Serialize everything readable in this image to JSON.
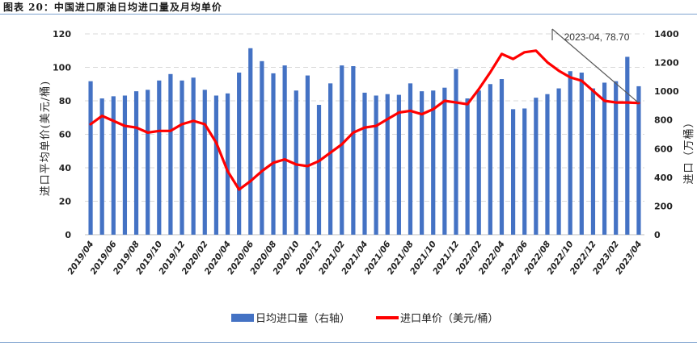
{
  "figure_title": "图表 20：中国进口原油日均进口量及月均单价",
  "chart_data": {
    "type": "bar+line",
    "title": "图表 20：中国进口原油日均进口量及月均单价",
    "left_axis": {
      "label": "进口平均单价(美元/桶)",
      "ticks": [
        "0",
        "20",
        "40",
        "60",
        "80",
        "100",
        "120"
      ],
      "range": [
        0,
        120
      ]
    },
    "right_axis": {
      "label": "进口（万桶）",
      "ticks": [
        "0",
        "200",
        "400",
        "600",
        "800",
        "1000",
        "1200",
        "1400"
      ],
      "range": [
        0,
        1400
      ]
    },
    "x_tick_labels": [
      "2019/04",
      "2019/06",
      "2019/08",
      "2019/10",
      "2019/12",
      "2020/02",
      "2020/04",
      "2020/06",
      "2020/08",
      "2020/10",
      "2020/12",
      "2021/02",
      "2021/04",
      "2021/06",
      "2021/08",
      "2021/10",
      "2021/12",
      "2022/02",
      "2022/04",
      "2022/06",
      "2022/08",
      "2022/10",
      "2022/12",
      "2023/02",
      "2023/04"
    ],
    "categories": [
      "2019/04",
      "2019/05",
      "2019/06",
      "2019/07",
      "2019/08",
      "2019/09",
      "2019/10",
      "2019/11",
      "2019/12",
      "2020/01",
      "2020/02",
      "2020/03",
      "2020/04",
      "2020/05",
      "2020/06",
      "2020/07",
      "2020/08",
      "2020/09",
      "2020/10",
      "2020/11",
      "2020/12",
      "2021/01",
      "2021/02",
      "2021/03",
      "2021/04",
      "2021/05",
      "2021/06",
      "2021/07",
      "2021/08",
      "2021/09",
      "2021/10",
      "2021/11",
      "2021/12",
      "2022/01",
      "2022/02",
      "2022/03",
      "2022/04",
      "2022/05",
      "2022/06",
      "2022/07",
      "2022/08",
      "2022/09",
      "2022/10",
      "2022/11",
      "2022/12",
      "2023/01",
      "2023/02",
      "2023/03",
      "2023/04"
    ],
    "series": [
      {
        "name": "日均进口量（右轴）",
        "type": "bar",
        "axis": "right",
        "color": "#4472c4",
        "values": [
          1070,
          950,
          965,
          970,
          1000,
          1010,
          1075,
          1120,
          1075,
          1095,
          1010,
          970,
          985,
          1130,
          1300,
          1210,
          1125,
          1180,
          1005,
          1110,
          905,
          1055,
          1180,
          1175,
          990,
          970,
          980,
          975,
          1055,
          1000,
          1005,
          1025,
          1155,
          950,
          1005,
          1050,
          1085,
          875,
          880,
          955,
          980,
          1020,
          1140,
          1130,
          1020,
          1060,
          1070,
          1240,
          1035
        ]
      },
      {
        "name": "进口单价（美元/桶）",
        "type": "line",
        "axis": "left",
        "color": "#ff0000",
        "values": [
          66,
          71,
          68,
          65,
          64,
          61,
          62,
          62,
          66,
          68,
          66,
          55,
          38,
          27,
          32,
          38,
          43,
          45,
          42,
          41,
          44,
          49,
          54,
          61,
          64,
          65,
          69,
          73,
          74,
          72,
          75,
          80,
          79,
          78,
          87,
          97,
          108,
          105,
          109,
          110,
          103,
          98,
          94,
          92,
          86,
          80,
          79,
          79,
          78.7
        ]
      }
    ],
    "annotation": "2023-04, 78.70",
    "legend": {
      "placement": "bottom-center",
      "items": [
        "日均进口量（右轴）",
        "进口单价（美元/桶）"
      ]
    },
    "grid": true
  }
}
